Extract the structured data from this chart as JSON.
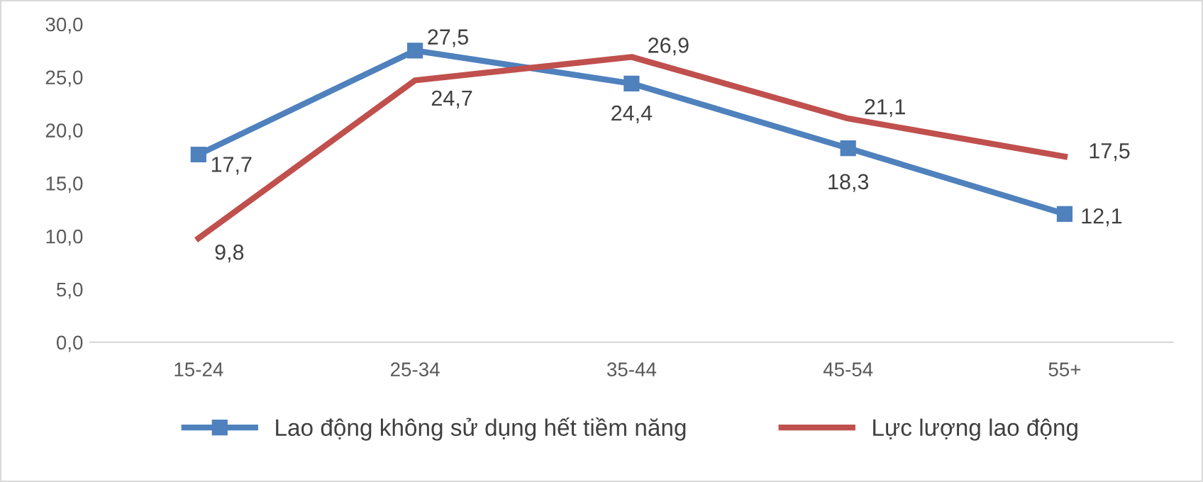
{
  "chart_data": {
    "type": "line",
    "categories": [
      "15-24",
      "25-34",
      "35-44",
      "45-54",
      "55+"
    ],
    "series": [
      {
        "name": "Lao động không sử dụng hết tiềm năng",
        "color": "#4f81bd",
        "marker": "square",
        "values": [
          17.7,
          27.5,
          24.4,
          18.3,
          12.1
        ],
        "value_labels": [
          "17,7",
          "27,5",
          "24,4",
          "18,3",
          "12,1"
        ]
      },
      {
        "name": "Lực lượng lao động",
        "color": "#c0504d",
        "marker": "none",
        "values": [
          9.8,
          24.7,
          26.9,
          21.1,
          17.5
        ],
        "value_labels": [
          "9,8",
          "24,7",
          "26,9",
          "21,1",
          "17,5"
        ]
      }
    ],
    "ylim": [
      0,
      30
    ],
    "yticks": [
      {
        "value": 0,
        "label": "0,0"
      },
      {
        "value": 5,
        "label": "5,0"
      },
      {
        "value": 10,
        "label": "10,0"
      },
      {
        "value": 15,
        "label": "15,0"
      },
      {
        "value": 20,
        "label": "20,0"
      },
      {
        "value": 25,
        "label": "25,0"
      },
      {
        "value": 30,
        "label": "30,0"
      }
    ],
    "grid": false,
    "legend": "bottom",
    "line_style": "solid"
  }
}
